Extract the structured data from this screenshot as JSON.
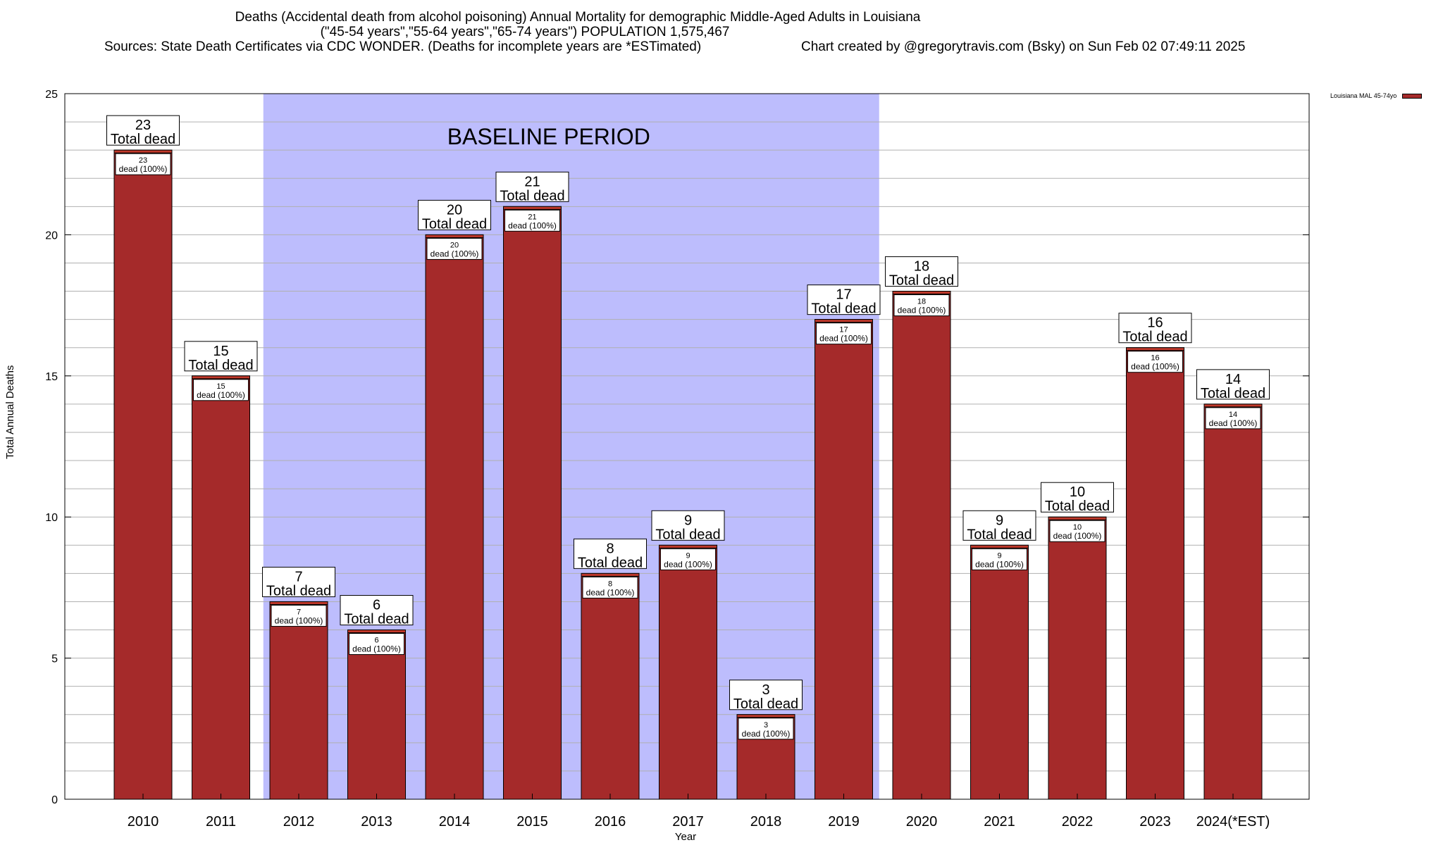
{
  "chart_data": {
    "type": "bar",
    "title": [
      "Deaths (Accidental death from alcohol poisoning) Annual Mortality for demographic Middle-Aged Adults in Louisiana",
      "(\"45-54 years\",\"55-64 years\",\"65-74 years\") POPULATION 1,575,467",
      "Sources: State Death Certificates via CDC WONDER. (Deaths for incomplete years are *ESTimated)",
      "Chart created by @gregorytravis.com (Bsky) on Sun Feb 02 07:49:11 2025"
    ],
    "xlabel": "Year",
    "ylabel": "Total Annual Deaths",
    "categories": [
      "2010",
      "2011",
      "2012",
      "2013",
      "2014",
      "2015",
      "2016",
      "2017",
      "2018",
      "2019",
      "2020",
      "2021",
      "2022",
      "2023",
      "2024(*EST)"
    ],
    "series": [
      {
        "name": "Louisiana MAL 45-74yo",
        "values": [
          23,
          15,
          7,
          6,
          20,
          21,
          8,
          9,
          3,
          17,
          18,
          9,
          10,
          16,
          14
        ]
      }
    ],
    "ylim": [
      0,
      25
    ],
    "yticks": [
      0,
      5,
      10,
      15,
      20,
      25
    ],
    "grid": true,
    "legend_position": "top-right",
    "total_label_text": "Total dead",
    "inner_label_text": "dead (100%)",
    "annotation": {
      "text": "BASELINE PERIOD",
      "span": [
        "2012",
        "2019"
      ]
    },
    "colors": {
      "bar": "#a52a2a",
      "bar_cap": "#c0392b",
      "baseline_band": "#bdbdfd",
      "grid": "#b0b0b0"
    }
  }
}
